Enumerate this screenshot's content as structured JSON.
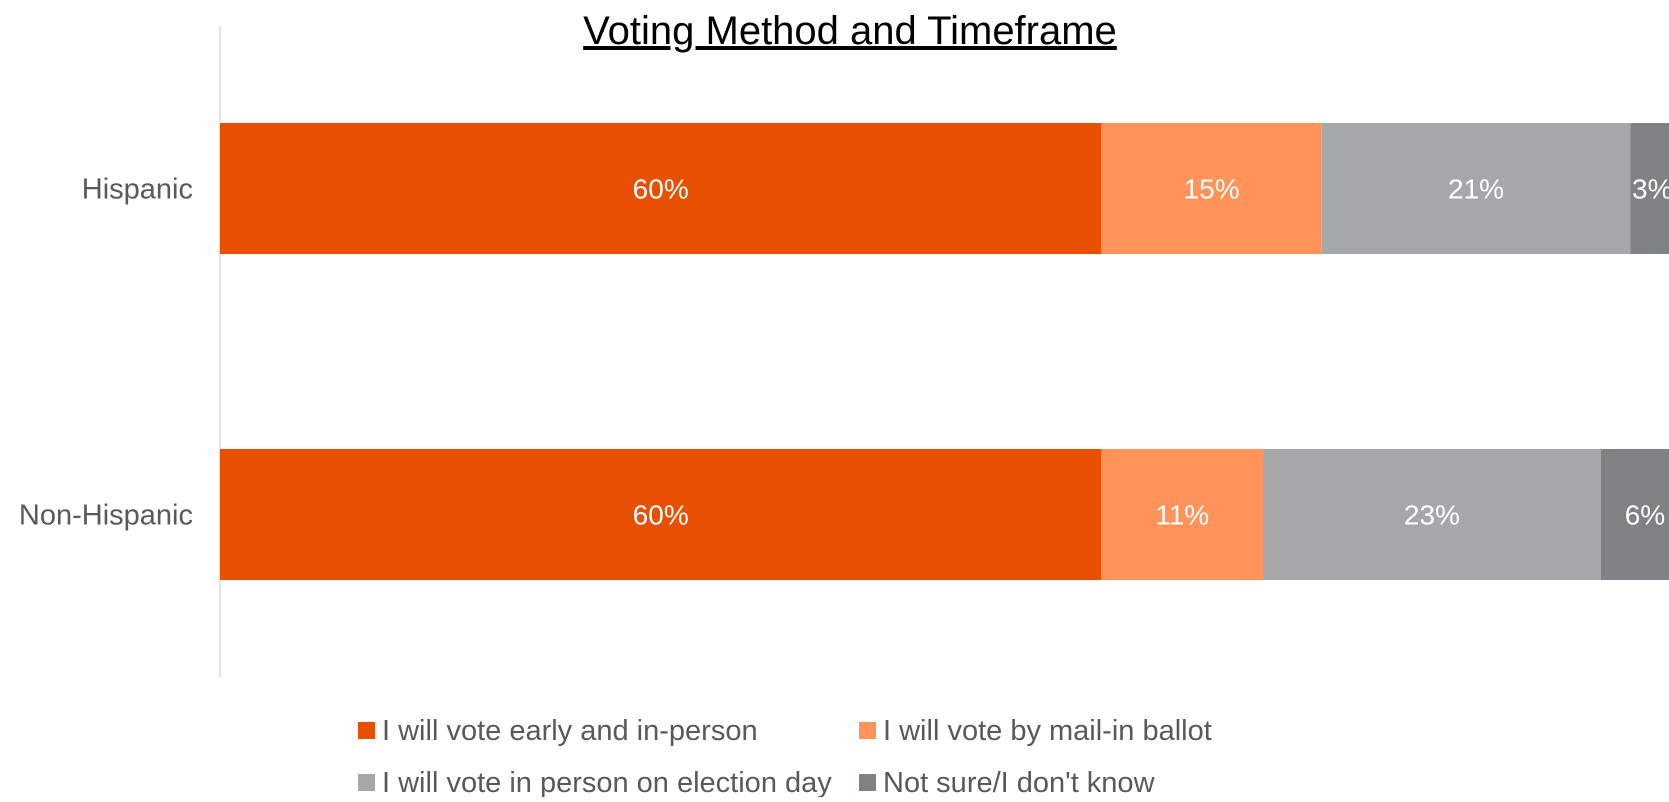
{
  "chart_data": {
    "type": "bar",
    "orientation": "horizontal",
    "stacked": true,
    "title": "Voting Method and Timeframe",
    "categories": [
      "Hispanic",
      "Non-Hispanic"
    ],
    "series": [
      {
        "name": "I will vote early and in-person",
        "values": [
          60,
          60
        ],
        "labels": [
          "60%",
          "60%"
        ],
        "color": "#E84F00"
      },
      {
        "name": "I will vote by mail-in ballot",
        "values": [
          15,
          11
        ],
        "labels": [
          "15%",
          "11%"
        ],
        "color": "#FF9359"
      },
      {
        "name": "I will vote in person on election day",
        "values": [
          21,
          23
        ],
        "labels": [
          "21%",
          "23%"
        ],
        "color": "#A5A7A9"
      },
      {
        "name": "Not sure/I don't know",
        "values": [
          3,
          6
        ],
        "labels": [
          "3%",
          "6%"
        ],
        "color": "#7E8285"
      }
    ],
    "xlim": [
      0,
      100
    ],
    "grid": false,
    "legend_position": "bottom"
  }
}
